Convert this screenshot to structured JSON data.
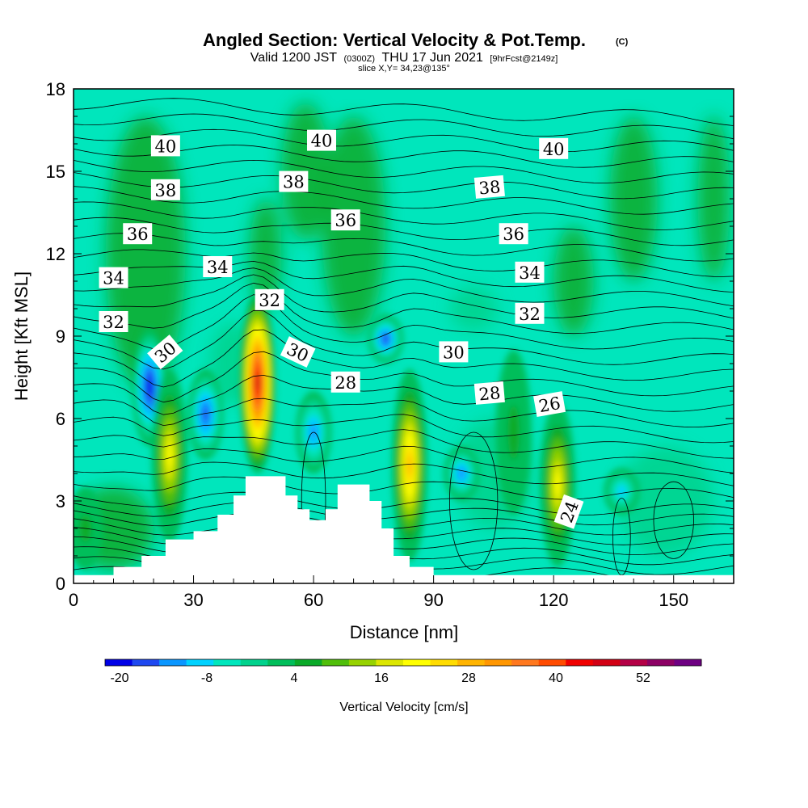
{
  "header": {
    "title_main": "Angled Section: Vertical Velocity & Pot.Temp.",
    "title_copyright": "(C)",
    "valid_prefix": "Valid 1200 JST",
    "valid_utc": "(0300Z)",
    "valid_date": "THU 17 Jun 2021",
    "valid_fcst": "[9hrFcst@2149z]",
    "slice": "slice X,Y= 34,23@135°"
  },
  "chart_data": {
    "type": "heatmap",
    "title": "Angled Section: Vertical Velocity & Pot.Temp.",
    "xlabel": "Distance [nm]",
    "ylabel": "Height [Kft MSL]",
    "xlim": [
      0,
      165
    ],
    "ylim": [
      0,
      18
    ],
    "x_ticks": [
      0,
      30,
      60,
      90,
      120,
      150
    ],
    "y_ticks": [
      0,
      3,
      6,
      9,
      12,
      15,
      18
    ],
    "grid": false,
    "background_value_cm_s": 2,
    "updraft_cores": [
      {
        "x": 24,
        "height_kft": [
          1.5,
          7.8
        ],
        "peak_cm_s": 24
      },
      {
        "x": 46,
        "height_kft": [
          4.0,
          10.6
        ],
        "peak_cm_s": 50
      },
      {
        "x": 84,
        "height_kft": [
          0.8,
          7.8
        ],
        "peak_cm_s": 32
      },
      {
        "x": 121,
        "height_kft": [
          0.6,
          6.6
        ],
        "peak_cm_s": 24
      },
      {
        "x": 110,
        "height_kft": [
          2.5,
          8.5
        ],
        "peak_cm_s": 8
      },
      {
        "x": 3,
        "height_kft": [
          0.5,
          3.5
        ],
        "peak_cm_s": 6
      }
    ],
    "downdraft_cores": [
      {
        "x": 19,
        "height_kft": [
          5.0,
          9.3
        ],
        "peak_cm_s": -20
      },
      {
        "x": 33,
        "height_kft": [
          4.5,
          7.8
        ],
        "peak_cm_s": -18
      },
      {
        "x": 60,
        "height_kft": [
          4.0,
          7.0
        ],
        "peak_cm_s": -12
      },
      {
        "x": 78,
        "height_kft": [
          8.0,
          9.8
        ],
        "peak_cm_s": -16
      },
      {
        "x": 97,
        "height_kft": [
          3.0,
          5.0
        ],
        "peak_cm_s": -14
      },
      {
        "x": 137,
        "height_kft": [
          2.5,
          4.2
        ],
        "peak_cm_s": -10
      }
    ],
    "terrain": [
      {
        "x": 0,
        "height_kft": 0.3
      },
      {
        "x": 10,
        "height_kft": 0.6
      },
      {
        "x": 17,
        "height_kft": 1.0
      },
      {
        "x": 23,
        "height_kft": 1.6
      },
      {
        "x": 30,
        "height_kft": 1.9
      },
      {
        "x": 36,
        "height_kft": 2.5
      },
      {
        "x": 40,
        "height_kft": 3.2
      },
      {
        "x": 43,
        "height_kft": 3.9
      },
      {
        "x": 50,
        "height_kft": 3.9
      },
      {
        "x": 53,
        "height_kft": 3.2
      },
      {
        "x": 56,
        "height_kft": 2.7
      },
      {
        "x": 59,
        "height_kft": 2.3
      },
      {
        "x": 63,
        "height_kft": 2.7
      },
      {
        "x": 66,
        "height_kft": 3.6
      },
      {
        "x": 72,
        "height_kft": 3.6
      },
      {
        "x": 74,
        "height_kft": 3.0
      },
      {
        "x": 77,
        "height_kft": 2.0
      },
      {
        "x": 80,
        "height_kft": 1.0
      },
      {
        "x": 84,
        "height_kft": 0.6
      },
      {
        "x": 90,
        "height_kft": 0.3
      },
      {
        "x": 165,
        "height_kft": 0.3
      }
    ],
    "contour_labels": [
      {
        "text": "40",
        "x": 23,
        "y": 15.9,
        "angle": 0
      },
      {
        "text": "40",
        "x": 62,
        "y": 16.1,
        "angle": 0
      },
      {
        "text": "40",
        "x": 120,
        "y": 15.8,
        "angle": 0
      },
      {
        "text": "38",
        "x": 23,
        "y": 14.3,
        "angle": 0
      },
      {
        "text": "38",
        "x": 55,
        "y": 14.6,
        "angle": 0
      },
      {
        "text": "38",
        "x": 104,
        "y": 14.4,
        "angle": -5
      },
      {
        "text": "36",
        "x": 16,
        "y": 12.7,
        "angle": 0
      },
      {
        "text": "36",
        "x": 68,
        "y": 13.2,
        "angle": 0
      },
      {
        "text": "36",
        "x": 110,
        "y": 12.7,
        "angle": 0
      },
      {
        "text": "34",
        "x": 10,
        "y": 11.1,
        "angle": 0
      },
      {
        "text": "34",
        "x": 36,
        "y": 11.5,
        "angle": 0
      },
      {
        "text": "34",
        "x": 114,
        "y": 11.3,
        "angle": 0
      },
      {
        "text": "32",
        "x": 10,
        "y": 9.5,
        "angle": 0
      },
      {
        "text": "32",
        "x": 49,
        "y": 10.3,
        "angle": 0
      },
      {
        "text": "32",
        "x": 114,
        "y": 9.8,
        "angle": 0
      },
      {
        "text": "30",
        "x": 23,
        "y": 8.4,
        "angle": -40
      },
      {
        "text": "30",
        "x": 56,
        "y": 8.4,
        "angle": 25
      },
      {
        "text": "30",
        "x": 95,
        "y": 8.4,
        "angle": 0
      },
      {
        "text": "28",
        "x": 68,
        "y": 7.3,
        "angle": 0
      },
      {
        "text": "28",
        "x": 104,
        "y": 6.9,
        "angle": -5
      },
      {
        "text": "26",
        "x": 119,
        "y": 6.5,
        "angle": -10
      },
      {
        "text": "24",
        "x": 124,
        "y": 2.6,
        "angle": -70
      }
    ],
    "colorbar": {
      "title": "Vertical Velocity [cm/s]",
      "min": -22,
      "max": 60,
      "step": 4,
      "tick_labels": [
        "-20",
        "-8",
        "4",
        "16",
        "28",
        "40",
        "52"
      ],
      "tick_values": [
        -20,
        -8,
        4,
        16,
        28,
        40,
        52
      ],
      "colors": [
        "#0000e6",
        "#1e48f0",
        "#0a96ff",
        "#00d2ff",
        "#00e6bc",
        "#00d28c",
        "#00be5a",
        "#0aaa28",
        "#50be0a",
        "#96d200",
        "#dce600",
        "#ffff00",
        "#ffdc00",
        "#ffb400",
        "#ff9600",
        "#ff781e",
        "#ff4b00",
        "#f00000",
        "#d20014",
        "#b40046",
        "#8c0064",
        "#6e0082"
      ]
    }
  }
}
